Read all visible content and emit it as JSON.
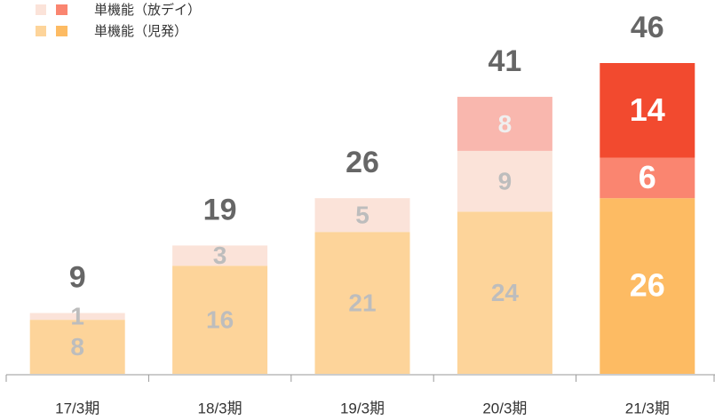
{
  "chart_data": {
    "type": "stacked_bar",
    "categories": [
      "17/3期",
      "18/3期",
      "19/3期",
      "20/3期",
      "21/3期"
    ],
    "series": [
      {
        "name": "単機能（児発）",
        "values": [
          8,
          16,
          21,
          24,
          26
        ],
        "colors": [
          "#fdd49a",
          "#fdd49a",
          "#fdd49a",
          "#fdd49a",
          "#fdbb63"
        ],
        "label_colors": [
          "#bdbdbd",
          "#bdbdbd",
          "#bdbdbd",
          "#bdbdbd",
          "#ffffff"
        ]
      },
      {
        "name": "単機能（放デイ）",
        "values": [
          1,
          3,
          5,
          9,
          6
        ],
        "colors": [
          "#fbe3d9",
          "#fbe3d9",
          "#fbe3d9",
          "#fbe3d9",
          "#fa8570"
        ],
        "label_colors": [
          "#bdbdbd",
          "#bdbdbd",
          "#bdbdbd",
          "#bdbdbd",
          "#ffffff"
        ]
      },
      {
        "values": [
          null,
          null,
          null,
          8,
          14
        ],
        "colors": [
          null,
          null,
          null,
          "#f9b7ae",
          "#f24a2f"
        ],
        "label_colors": [
          null,
          null,
          null,
          "#efefef",
          "#ffffff"
        ]
      }
    ],
    "totals": [
      9,
      19,
      26,
      41,
      46
    ],
    "ylim": [
      0,
      46
    ]
  }
}
